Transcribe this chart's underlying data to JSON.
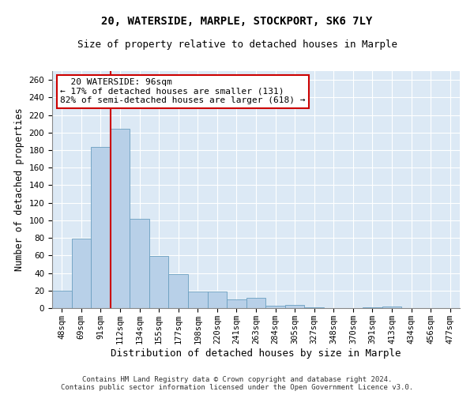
{
  "title": "20, WATERSIDE, MARPLE, STOCKPORT, SK6 7LY",
  "subtitle": "Size of property relative to detached houses in Marple",
  "xlabel": "Distribution of detached houses by size in Marple",
  "ylabel": "Number of detached properties",
  "categories": [
    "48sqm",
    "69sqm",
    "91sqm",
    "112sqm",
    "134sqm",
    "155sqm",
    "177sqm",
    "198sqm",
    "220sqm",
    "241sqm",
    "263sqm",
    "284sqm",
    "305sqm",
    "327sqm",
    "348sqm",
    "370sqm",
    "391sqm",
    "413sqm",
    "434sqm",
    "456sqm",
    "477sqm"
  ],
  "values": [
    20,
    79,
    184,
    204,
    102,
    59,
    39,
    19,
    19,
    10,
    12,
    3,
    4,
    1,
    0,
    0,
    1,
    2,
    0,
    0,
    0
  ],
  "bar_color": "#b8d0e8",
  "bar_edge_color": "#6a9fc0",
  "vline_x": 2.52,
  "vline_color": "#cc0000",
  "annotation_text": "  20 WATERSIDE: 96sqm\n← 17% of detached houses are smaller (131)\n82% of semi-detached houses are larger (618) →",
  "annotation_box_color": "#ffffff",
  "annotation_box_edge": "#cc0000",
  "ylim": [
    0,
    270
  ],
  "yticks": [
    0,
    20,
    40,
    60,
    80,
    100,
    120,
    140,
    160,
    180,
    200,
    220,
    240,
    260
  ],
  "background_color": "#dce9f5",
  "footer_text": "Contains HM Land Registry data © Crown copyright and database right 2024.\nContains public sector information licensed under the Open Government Licence v3.0.",
  "title_fontsize": 10,
  "subtitle_fontsize": 9,
  "xlabel_fontsize": 9,
  "ylabel_fontsize": 8.5,
  "tick_fontsize": 7.5,
  "annotation_fontsize": 8,
  "footer_fontsize": 6.5
}
